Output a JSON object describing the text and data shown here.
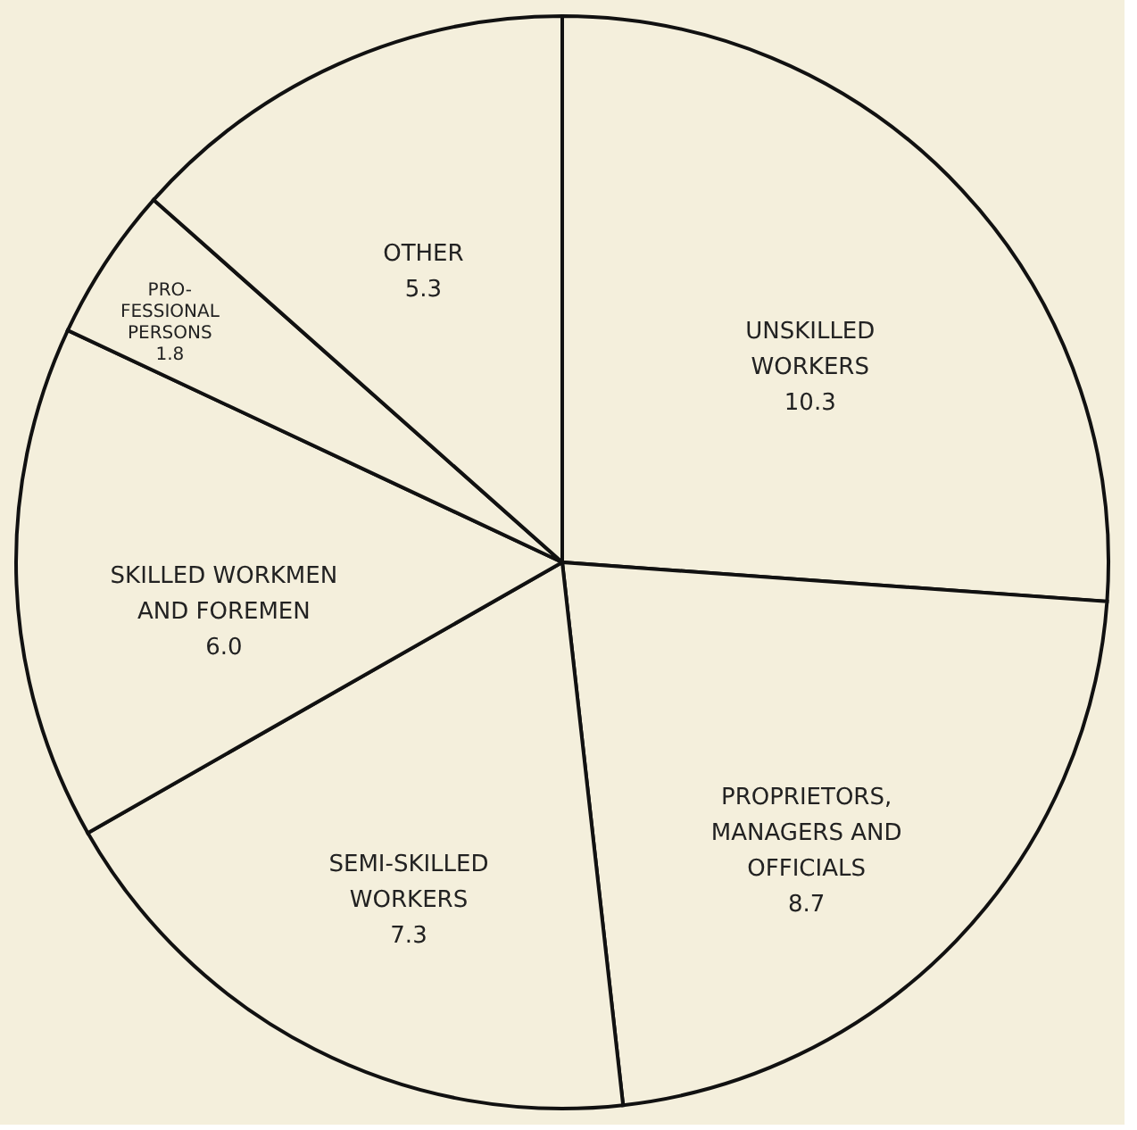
{
  "chart_data": {
    "type": "pie",
    "categories": [
      "UNSKILLED\nWORKERS",
      "PROPRIETORS,\nMANAGERS AND\nOFFICIALS",
      "SEMI-SKILLED\nWORKERS",
      "SKILLED WORKMEN\nAND FOREMEN",
      "PRO-\nFESSIONAL\nPERSONS",
      "OTHER"
    ],
    "values": [
      10.3,
      8.7,
      7.3,
      6.0,
      1.8,
      5.3
    ],
    "value_labels": [
      "10.3",
      "8.7",
      "7.3",
      "6.0",
      "1.8",
      "5.3"
    ],
    "colors": [
      "#f4efdc",
      "#f4efdc",
      "#f4efdc",
      "#f4efdc",
      "#f4efdc",
      "#f4efdc"
    ],
    "legend": false
  }
}
